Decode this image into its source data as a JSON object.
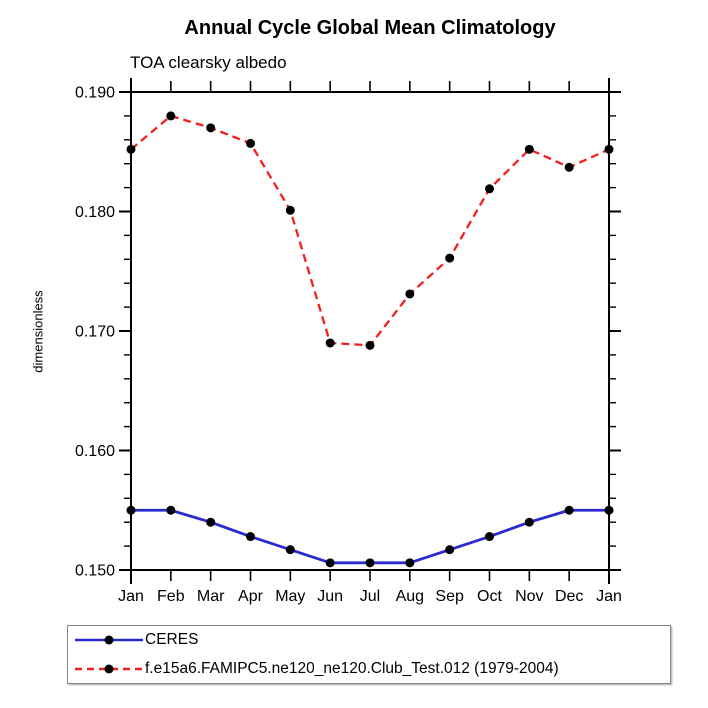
{
  "title": "Annual Cycle Global Mean Climatology",
  "subtitle": "TOA clearsky albedo",
  "ylabel": "dimensionless",
  "colors": {
    "ceres_line": "#2a2ad0",
    "model_line": "#f21f1f",
    "marker": "#000000",
    "axis": "#000000",
    "legend_border": "#848484"
  },
  "chart_data": {
    "type": "line",
    "title": "Annual Cycle Global Mean Climatology",
    "subtitle": "TOA clearsky albedo",
    "xlabel": "",
    "ylabel": "dimensionless",
    "categories": [
      "Jan",
      "Feb",
      "Mar",
      "Apr",
      "May",
      "Jun",
      "Jul",
      "Aug",
      "Sep",
      "Oct",
      "Nov",
      "Dec",
      "Jan"
    ],
    "series": [
      {
        "name": "CERES",
        "color_key": "ceres_line",
        "line_style": "solid",
        "marker": "filled-circle",
        "values": [
          0.155,
          0.155,
          0.154,
          0.1528,
          0.1517,
          0.1506,
          0.1506,
          0.1506,
          0.1517,
          0.1528,
          0.154,
          0.155,
          0.155
        ]
      },
      {
        "name": "f.e15a6.FAMIPC5.ne120_ne120.Club_Test.012 (1979-2004)",
        "color_key": "model_line",
        "line_style": "dashed",
        "marker": "filled-circle",
        "values": [
          0.1852,
          0.188,
          0.187,
          0.1857,
          0.1801,
          0.169,
          0.1688,
          0.1731,
          0.1761,
          0.1819,
          0.1852,
          0.1837,
          0.1852
        ]
      }
    ],
    "ylim": [
      0.15,
      0.19
    ],
    "ytick_major_step": 0.01,
    "ytick_minor_step": 0.002,
    "ytick_labels": [
      "0.150",
      "0.160",
      "0.170",
      "0.180",
      "0.190"
    ],
    "grid": false,
    "frame": "box-with-outward-ticks",
    "legend_position": "bottom-left"
  }
}
